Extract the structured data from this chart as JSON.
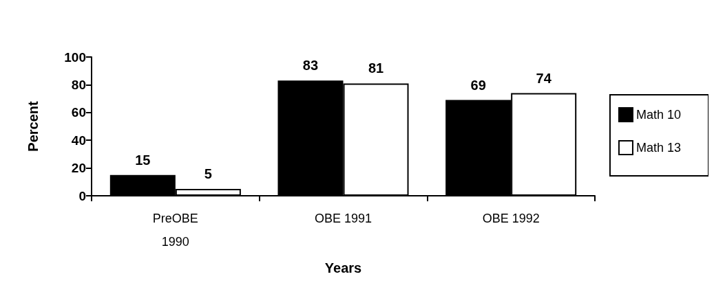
{
  "chart_data": {
    "type": "bar",
    "xlabel": "Years",
    "ylabel": "Percent",
    "categories": [
      "PreOBE\n1990",
      "OBE 1991",
      "OBE 1992"
    ],
    "series": [
      {
        "name": "Math 10",
        "color": "#000000",
        "values": [
          15,
          83,
          69
        ]
      },
      {
        "name": "Math 13",
        "color": "#ffffff",
        "values": [
          5,
          81,
          74
        ]
      }
    ],
    "ylim": [
      0,
      100
    ],
    "yticks": [
      0,
      20,
      40,
      60,
      80,
      100
    ],
    "grid": false,
    "legend": "right",
    "data_labels": true
  }
}
